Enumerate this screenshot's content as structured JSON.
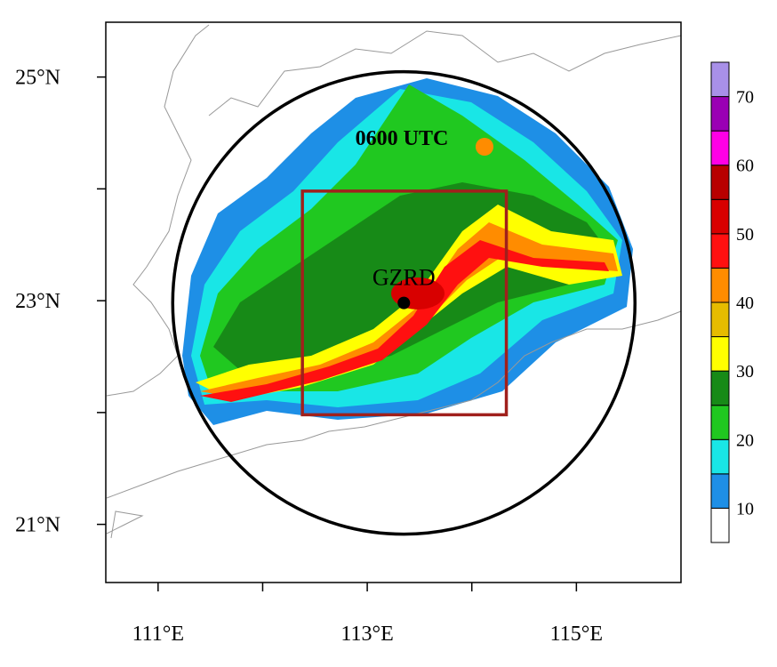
{
  "map": {
    "title": "0600 UTC",
    "xlim": [
      110.5,
      116.0
    ],
    "ylim": [
      20.48,
      25.49
    ],
    "xticks": [
      {
        "value": 111,
        "label": "111°E"
      },
      {
        "value": 112,
        "label": null
      },
      {
        "value": 113,
        "label": "113°E"
      },
      {
        "value": 114,
        "label": null
      },
      {
        "value": 115,
        "label": "115°E"
      }
    ],
    "yticks": [
      {
        "value": 25,
        "label": "25°N"
      },
      {
        "value": 24,
        "label": null
      },
      {
        "value": 23,
        "label": "23°N"
      },
      {
        "value": 22,
        "label": null
      },
      {
        "value": 21,
        "label": "21°N"
      }
    ],
    "station": {
      "label": "GZRD",
      "lon": 113.35,
      "lat": 22.98
    },
    "box": {
      "lon": [
        112.38,
        114.33
      ],
      "lat": [
        21.98,
        23.98
      ],
      "color": "#a0201c"
    },
    "colorbar": {
      "levels": [
        5,
        10,
        15,
        20,
        25,
        30,
        35,
        40,
        45,
        50,
        55,
        60,
        65,
        70,
        75
      ],
      "colors": [
        "#ffffff",
        "#1e8fe6",
        "#19e6e6",
        "#20c820",
        "#178a17",
        "#ffff00",
        "#e6bc00",
        "#ff8c00",
        "#ff1010",
        "#d80000",
        "#b80000",
        "#ff00e6",
        "#9a00b4",
        "#a890e8"
      ],
      "ticks": [
        10,
        20,
        30,
        40,
        50,
        60,
        70
      ]
    }
  }
}
